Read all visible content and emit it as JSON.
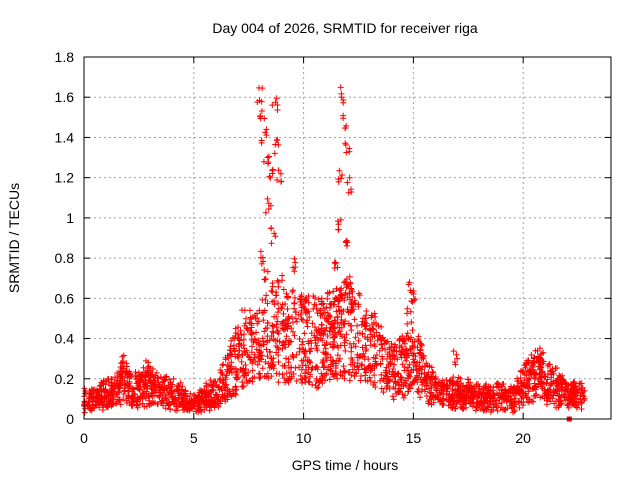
{
  "chart_data": {
    "type": "scatter",
    "title": "Day 004 of 2026, SRMTID for receiver riga",
    "xlabel": "GPS time / hours",
    "ylabel": "SRMTID / TECUs",
    "xlim": [
      0,
      24
    ],
    "ylim": [
      0,
      1.8
    ],
    "xticks": [
      0,
      5,
      10,
      15,
      20
    ],
    "xtick_labels": [
      "0",
      "5",
      "10",
      "15",
      "20"
    ],
    "yticks": [
      0,
      0.2,
      0.4,
      0.6,
      0.8,
      1,
      1.2,
      1.4,
      1.6,
      1.8
    ],
    "ytick_labels": [
      "0",
      "0.2",
      "0.4",
      "0.6",
      "0.8",
      "1",
      "1.2",
      "1.4",
      "1.6",
      "1.8"
    ],
    "grid": true,
    "marker": "+",
    "color": "#ff0000",
    "series": [
      {
        "name": "SRMTID",
        "envelope": [
          [
            0.0,
            0.09
          ],
          [
            0.5,
            0.1
          ],
          [
            1.0,
            0.12
          ],
          [
            1.5,
            0.13
          ],
          [
            1.8,
            0.2
          ],
          [
            2.2,
            0.14
          ],
          [
            2.8,
            0.17
          ],
          [
            3.2,
            0.15
          ],
          [
            3.8,
            0.13
          ],
          [
            4.4,
            0.11
          ],
          [
            4.8,
            0.07
          ],
          [
            5.2,
            0.08
          ],
          [
            5.8,
            0.12
          ],
          [
            6.2,
            0.15
          ],
          [
            6.6,
            0.22
          ],
          [
            7.0,
            0.3
          ],
          [
            7.4,
            0.38
          ],
          [
            7.8,
            0.34
          ],
          [
            8.2,
            0.4
          ],
          [
            8.6,
            0.44
          ],
          [
            9.0,
            0.36
          ],
          [
            9.5,
            0.42
          ],
          [
            10.0,
            0.4
          ],
          [
            10.5,
            0.38
          ],
          [
            11.0,
            0.4
          ],
          [
            11.5,
            0.42
          ],
          [
            12.0,
            0.46
          ],
          [
            12.5,
            0.4
          ],
          [
            13.0,
            0.36
          ],
          [
            13.5,
            0.3
          ],
          [
            14.0,
            0.24
          ],
          [
            14.5,
            0.26
          ],
          [
            15.0,
            0.3
          ],
          [
            15.5,
            0.22
          ],
          [
            16.0,
            0.14
          ],
          [
            16.5,
            0.12
          ],
          [
            17.0,
            0.13
          ],
          [
            17.5,
            0.12
          ],
          [
            18.0,
            0.1
          ],
          [
            18.5,
            0.1
          ],
          [
            19.0,
            0.11
          ],
          [
            19.5,
            0.1
          ],
          [
            20.0,
            0.17
          ],
          [
            20.5,
            0.22
          ],
          [
            21.0,
            0.2
          ],
          [
            21.5,
            0.16
          ],
          [
            22.0,
            0.12
          ],
          [
            22.5,
            0.12
          ],
          [
            22.8,
            0.1
          ]
        ],
        "spikes": [
          [
            8.0,
            1.65
          ],
          [
            8.1,
            1.55
          ],
          [
            8.2,
            1.45
          ],
          [
            8.3,
            1.35
          ],
          [
            8.5,
            1.25
          ],
          [
            8.7,
            1.6
          ],
          [
            8.8,
            1.4
          ],
          [
            8.9,
            1.25
          ],
          [
            8.4,
            1.1
          ],
          [
            8.6,
            0.95
          ],
          [
            8.1,
            0.85
          ],
          [
            8.3,
            0.75
          ],
          [
            8.9,
            0.72
          ],
          [
            9.6,
            0.8
          ],
          [
            10.0,
            0.6
          ],
          [
            11.8,
            1.65
          ],
          [
            11.9,
            1.52
          ],
          [
            12.0,
            1.4
          ],
          [
            11.7,
            1.25
          ],
          [
            12.1,
            1.2
          ],
          [
            11.6,
            1.0
          ],
          [
            11.9,
            0.92
          ],
          [
            11.5,
            0.8
          ],
          [
            12.0,
            0.72
          ],
          [
            12.2,
            0.6
          ],
          [
            14.9,
            0.68
          ],
          [
            15.0,
            0.65
          ],
          [
            14.8,
            0.55
          ],
          [
            20.8,
            0.36
          ],
          [
            16.9,
            0.35
          ],
          [
            2.9,
            0.29
          ],
          [
            1.6,
            0.27
          ],
          [
            7.5,
            0.5
          ],
          [
            9.2,
            0.65
          ],
          [
            10.8,
            0.58
          ]
        ]
      }
    ]
  }
}
